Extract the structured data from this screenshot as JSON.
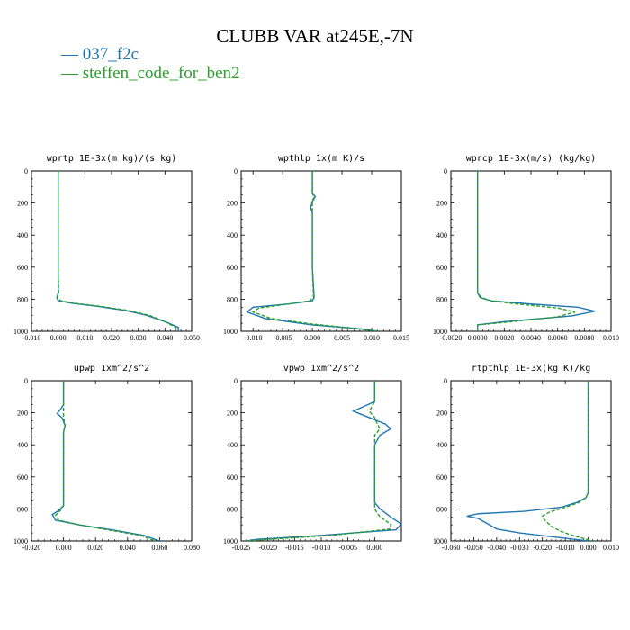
{
  "figure": {
    "title": "CLUBB VAR at245E,-7N",
    "legend": [
      {
        "label": "037_f2c",
        "color": "#1f77b4"
      },
      {
        "label": "steffen_code_for_ben2",
        "color": "#2ca02c"
      }
    ]
  },
  "chart_data": [
    {
      "type": "line",
      "title": "wprtp  1E-3x(m kg)/(s kg)",
      "xlim": [
        -0.01,
        0.05
      ],
      "ylim": [
        1000,
        0
      ],
      "xticks": [
        "-0.010",
        "0.000",
        "0.010",
        "0.020",
        "0.030",
        "0.040",
        "0.050"
      ],
      "xtick_values": [
        -0.01,
        0.0,
        0.01,
        0.02,
        0.03,
        0.04,
        0.05
      ],
      "yticks": [
        "0",
        "200",
        "400",
        "600",
        "800",
        "1000"
      ],
      "ytick_values": [
        0,
        200,
        400,
        600,
        800,
        1000
      ],
      "series": [
        {
          "name": "037_f2c",
          "points": [
            [
              0.0,
              0
            ],
            [
              0.0,
              300
            ],
            [
              0.0,
              600
            ],
            [
              0.0,
              760
            ],
            [
              -0.0005,
              790
            ],
            [
              0.0,
              810
            ],
            [
              0.005,
              825
            ],
            [
              0.015,
              845
            ],
            [
              0.025,
              870
            ],
            [
              0.033,
              900
            ],
            [
              0.04,
              940
            ],
            [
              0.045,
              975
            ],
            [
              0.045,
              1000
            ]
          ]
        },
        {
          "name": "steffen_code_for_ben2",
          "points": [
            [
              0.0,
              0
            ],
            [
              0.0,
              300
            ],
            [
              0.0,
              600
            ],
            [
              0.0002,
              760
            ],
            [
              -0.0003,
              790
            ],
            [
              0.001,
              810
            ],
            [
              0.006,
              825
            ],
            [
              0.016,
              845
            ],
            [
              0.026,
              870
            ],
            [
              0.034,
              900
            ],
            [
              0.04,
              940
            ],
            [
              0.044,
              975
            ],
            [
              0.044,
              1000
            ]
          ]
        }
      ]
    },
    {
      "type": "line",
      "title": "wpthlp  1x(m K)/s",
      "xlim": [
        -0.012,
        0.015
      ],
      "ylim": [
        1000,
        0
      ],
      "xticks": [
        "-0.010",
        "-0.005",
        "0.000",
        "0.005",
        "0.010",
        "0.015"
      ],
      "xtick_values": [
        -0.01,
        -0.005,
        0.0,
        0.005,
        0.01,
        0.015
      ],
      "yticks": [
        "0",
        "200",
        "400",
        "600",
        "800",
        "1000"
      ],
      "ytick_values": [
        0,
        200,
        400,
        600,
        800,
        1000
      ],
      "series": [
        {
          "name": "037_f2c",
          "points": [
            [
              0.0,
              0
            ],
            [
              0.0,
              140
            ],
            [
              0.0005,
              160
            ],
            [
              0.0,
              190
            ],
            [
              -0.0003,
              230
            ],
            [
              0.0,
              260
            ],
            [
              0.0,
              400
            ],
            [
              0.0,
              600
            ],
            [
              0.0003,
              790
            ],
            [
              0.0,
              810
            ],
            [
              -0.004,
              830
            ],
            [
              -0.01,
              850
            ],
            [
              -0.011,
              880
            ],
            [
              -0.008,
              920
            ],
            [
              0.0,
              960
            ],
            [
              0.008,
              985
            ],
            [
              0.011,
              1000
            ]
          ]
        },
        {
          "name": "steffen_code_for_ben2",
          "points": [
            [
              0.0,
              0
            ],
            [
              0.0,
              140
            ],
            [
              0.0003,
              160
            ],
            [
              0.0,
              190
            ],
            [
              0.0,
              230
            ],
            [
              0.0,
              260
            ],
            [
              0.0,
              400
            ],
            [
              0.0,
              600
            ],
            [
              0.0002,
              790
            ],
            [
              -0.0005,
              810
            ],
            [
              -0.004,
              830
            ],
            [
              -0.009,
              855
            ],
            [
              -0.01,
              880
            ],
            [
              -0.007,
              920
            ],
            [
              0.0,
              955
            ],
            [
              0.008,
              985
            ],
            [
              0.011,
              1000
            ]
          ]
        }
      ]
    },
    {
      "type": "line",
      "title": "wprcp  1E-3x(m/s) (kg/kg)",
      "xlim": [
        -0.002,
        0.01
      ],
      "ylim": [
        1000,
        0
      ],
      "xticks": [
        "-0.0020",
        "0.0000",
        "0.0020",
        "0.0040",
        "0.0060",
        "0.0080",
        "0.010"
      ],
      "xtick_values": [
        -0.002,
        0.0,
        0.002,
        0.004,
        0.006,
        0.008,
        0.01
      ],
      "yticks": [
        "0",
        "200",
        "400",
        "600",
        "800",
        "1000"
      ],
      "ytick_values": [
        0,
        200,
        400,
        600,
        800,
        1000
      ],
      "series": [
        {
          "name": "037_f2c",
          "points": [
            [
              0.0,
              0
            ],
            [
              0.0,
              400
            ],
            [
              0.0,
              760
            ],
            [
              0.0002,
              790
            ],
            [
              0.001,
              810
            ],
            [
              0.004,
              830
            ],
            [
              0.0075,
              850
            ],
            [
              0.0088,
              875
            ],
            [
              0.007,
              905
            ],
            [
              0.002,
              940
            ],
            [
              0.0,
              960
            ],
            [
              0.0,
              1000
            ]
          ]
        },
        {
          "name": "steffen_code_for_ben2",
          "points": [
            [
              0.0,
              0
            ],
            [
              0.0,
              400
            ],
            [
              0.0,
              760
            ],
            [
              0.0003,
              790
            ],
            [
              0.001,
              810
            ],
            [
              0.003,
              830
            ],
            [
              0.006,
              855
            ],
            [
              0.0073,
              880
            ],
            [
              0.006,
              910
            ],
            [
              0.002,
              945
            ],
            [
              0.0,
              960
            ],
            [
              0.0,
              1000
            ]
          ]
        }
      ]
    },
    {
      "type": "line",
      "title": "upwp  1xm^2/s^2",
      "xlim": [
        -0.02,
        0.08
      ],
      "ylim": [
        1000,
        0
      ],
      "xticks": [
        "-0.020",
        "0.000",
        "0.020",
        "0.040",
        "0.060",
        "0.080"
      ],
      "xtick_values": [
        -0.02,
        0.0,
        0.02,
        0.04,
        0.06,
        0.08
      ],
      "yticks": [
        "0",
        "200",
        "400",
        "600",
        "800",
        "1000"
      ],
      "ytick_values": [
        0,
        200,
        400,
        600,
        800,
        1000
      ],
      "series": [
        {
          "name": "037_f2c",
          "points": [
            [
              0.0,
              0
            ],
            [
              0.0,
              150
            ],
            [
              -0.002,
              180
            ],
            [
              -0.004,
              205
            ],
            [
              -0.001,
              230
            ],
            [
              0.001,
              280
            ],
            [
              0.0,
              320
            ],
            [
              0.0,
              600
            ],
            [
              0.0,
              780
            ],
            [
              -0.003,
              810
            ],
            [
              -0.007,
              835
            ],
            [
              -0.005,
              870
            ],
            [
              0.01,
              900
            ],
            [
              0.03,
              930
            ],
            [
              0.05,
              965
            ],
            [
              0.06,
              1000
            ]
          ]
        },
        {
          "name": "steffen_code_for_ben2",
          "points": [
            [
              0.0,
              0
            ],
            [
              0.0,
              150
            ],
            [
              0.0,
              180
            ],
            [
              0.0,
              205
            ],
            [
              0.0,
              230
            ],
            [
              0.001,
              280
            ],
            [
              0.0,
              320
            ],
            [
              0.0,
              600
            ],
            [
              0.0,
              780
            ],
            [
              -0.002,
              810
            ],
            [
              -0.005,
              840
            ],
            [
              -0.003,
              870
            ],
            [
              0.01,
              900
            ],
            [
              0.03,
              935
            ],
            [
              0.048,
              965
            ],
            [
              0.057,
              1000
            ]
          ]
        }
      ]
    },
    {
      "type": "line",
      "title": "vpwp  1xm^2/s^2",
      "xlim": [
        -0.025,
        0.005
      ],
      "ylim": [
        1000,
        0
      ],
      "xticks": [
        "-0.025",
        "-0.020",
        "-0.015",
        "-0.010",
        "-0.005",
        "0.000"
      ],
      "xtick_values": [
        -0.025,
        -0.02,
        -0.015,
        -0.01,
        -0.005,
        0.0
      ],
      "yticks": [
        "0",
        "200",
        "400",
        "600",
        "800",
        "1000"
      ],
      "ytick_values": [
        0,
        200,
        400,
        600,
        800,
        1000
      ],
      "series": [
        {
          "name": "037_f2c",
          "points": [
            [
              0.0,
              0
            ],
            [
              0.0,
              130
            ],
            [
              -0.002,
              160
            ],
            [
              -0.004,
              190
            ],
            [
              -0.001,
              230
            ],
            [
              0.002,
              270
            ],
            [
              0.003,
              300
            ],
            [
              0.001,
              340
            ],
            [
              0.0,
              400
            ],
            [
              0.0,
              600
            ],
            [
              0.0,
              760
            ],
            [
              0.001,
              800
            ],
            [
              0.003,
              850
            ],
            [
              0.005,
              895
            ],
            [
              0.004,
              930
            ],
            [
              -0.01,
              965
            ],
            [
              -0.022,
              990
            ],
            [
              -0.024,
              1000
            ]
          ]
        },
        {
          "name": "steffen_code_for_ben2",
          "points": [
            [
              0.0,
              0
            ],
            [
              0.0,
              130
            ],
            [
              -0.0005,
              160
            ],
            [
              -0.001,
              190
            ],
            [
              0.0,
              230
            ],
            [
              0.0005,
              270
            ],
            [
              0.001,
              300
            ],
            [
              0.0,
              340
            ],
            [
              0.0,
              400
            ],
            [
              0.0,
              600
            ],
            [
              0.0,
              760
            ],
            [
              0.0,
              800
            ],
            [
              0.001,
              850
            ],
            [
              0.003,
              895
            ],
            [
              0.003,
              925
            ],
            [
              -0.008,
              965
            ],
            [
              -0.02,
              990
            ],
            [
              -0.024,
              1000
            ]
          ]
        }
      ]
    },
    {
      "type": "line",
      "title": "rtpthlp  1E-3x(kg K)/kg",
      "xlim": [
        -0.06,
        0.01
      ],
      "ylim": [
        1000,
        0
      ],
      "xticks": [
        "-0.060",
        "-0.050",
        "-0.040",
        "-0.030",
        "-0.020",
        "-0.010",
        "0.000",
        "0.010"
      ],
      "xtick_values": [
        -0.06,
        -0.05,
        -0.04,
        -0.03,
        -0.02,
        -0.01,
        0.0,
        0.01
      ],
      "yticks": [
        "0",
        "200",
        "400",
        "600",
        "800",
        "1000"
      ],
      "ytick_values": [
        0,
        200,
        400,
        600,
        800,
        1000
      ],
      "series": [
        {
          "name": "037_f2c",
          "points": [
            [
              0.0,
              0
            ],
            [
              0.0,
              400
            ],
            [
              0.0,
              700
            ],
            [
              -0.001,
              730
            ],
            [
              -0.005,
              760
            ],
            [
              -0.012,
              790
            ],
            [
              -0.028,
              815
            ],
            [
              -0.048,
              830
            ],
            [
              -0.053,
              845
            ],
            [
              -0.048,
              860
            ],
            [
              -0.04,
              925
            ],
            [
              -0.03,
              950
            ],
            [
              -0.015,
              975
            ],
            [
              0.0,
              1000
            ]
          ]
        },
        {
          "name": "steffen_code_for_ben2",
          "points": [
            [
              0.0,
              0
            ],
            [
              0.0,
              400
            ],
            [
              0.0,
              700
            ],
            [
              -0.001,
              730
            ],
            [
              -0.004,
              760
            ],
            [
              -0.01,
              790
            ],
            [
              -0.017,
              820
            ],
            [
              -0.02,
              845
            ],
            [
              -0.019,
              870
            ],
            [
              -0.016,
              910
            ],
            [
              -0.012,
              940
            ],
            [
              -0.007,
              965
            ],
            [
              -0.002,
              985
            ],
            [
              0.002,
              1000
            ]
          ]
        }
      ]
    }
  ]
}
